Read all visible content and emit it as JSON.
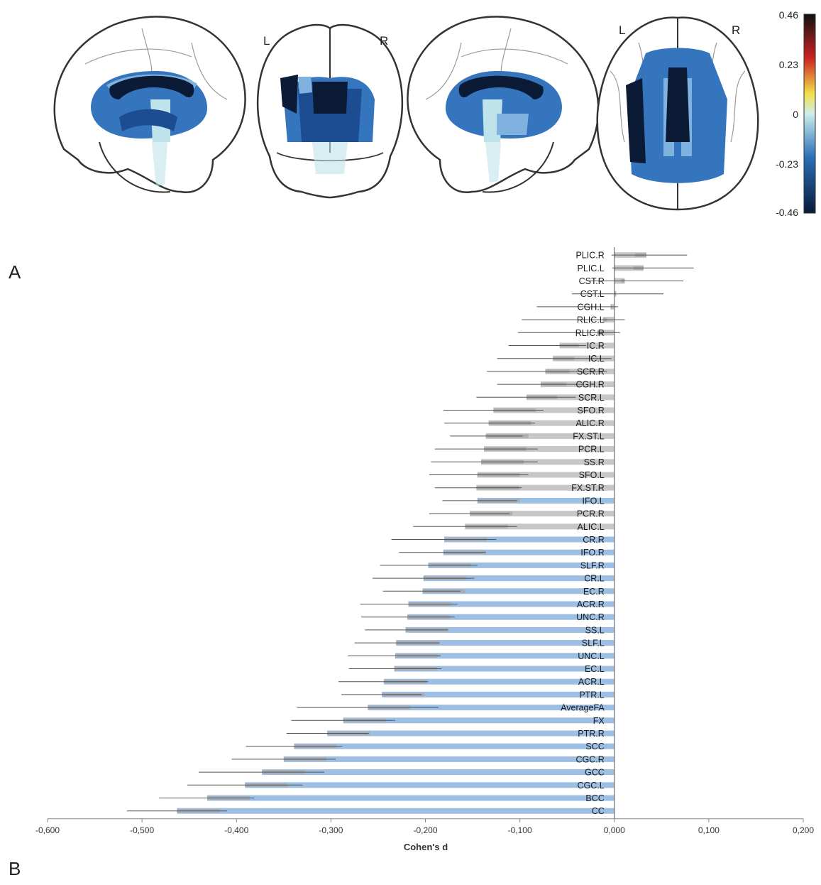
{
  "figure": {
    "panel_a_letter": "A",
    "panel_b_letter": "B",
    "orientation_labels": {
      "left": "L",
      "right": "R"
    },
    "colorbar": {
      "ticks": [
        "0.46",
        "0.23",
        "0",
        "-0.23",
        "-0.46"
      ],
      "colors": {
        "top": "#111111",
        "red": "#cc2222",
        "yellow": "#f2e04a",
        "zero": "#cdeeea",
        "mid_blue": "#2a6fb8",
        "bottom": "#0a1a3a"
      }
    },
    "region_colors": {
      "darkest": "#0b1b36",
      "dark": "#1c4d92",
      "mid": "#3575bd",
      "light": "#7fb2df",
      "pale": "#bfe3ea"
    }
  },
  "chart_data": {
    "type": "bar",
    "orientation": "horizontal",
    "xlabel": "Cohen's d",
    "xlim": [
      -0.6,
      0.2
    ],
    "xticks": [
      "-0,600",
      "-0,500",
      "-0,400",
      "-0,300",
      "-0,200",
      "-0,100",
      "0,000",
      "0,100",
      "0,200"
    ],
    "grid": false,
    "legend": "none",
    "colors": {
      "significant": "#9dbfe3",
      "nonsignificant": "#c7c7c7",
      "inner_band": "#a8a8a8",
      "error_bar": "#555555"
    },
    "categories": [
      "PLIC.R",
      "PLIC.L",
      "CST.R",
      "CST.L",
      "CGH.L",
      "RLIC.L",
      "RLIC.R",
      "IC.R",
      "IC.L",
      "SCR.R",
      "CGH.R",
      "SCR.L",
      "SFO.R",
      "ALIC.R",
      "FX.ST.L",
      "PCR.L",
      "SS.R",
      "SFO.L",
      "FX.ST.R",
      "IFO.L",
      "PCR.R",
      "ALIC.L",
      "CR.R",
      "IFO.R",
      "SLF.R",
      "CR.L",
      "EC.R",
      "ACR.R",
      "UNC.R",
      "SS.L",
      "SLF.L",
      "UNC.L",
      "EC.L",
      "ACR.L",
      "PTR.L",
      "AverageFA",
      "FX",
      "PTR.R",
      "SCC",
      "CGC.R",
      "GCC",
      "CGC.L",
      "BCC",
      "CC"
    ],
    "values": [
      0.034,
      0.031,
      0.011,
      0.002,
      -0.004,
      -0.012,
      -0.018,
      -0.058,
      -0.065,
      -0.073,
      -0.078,
      -0.093,
      -0.128,
      -0.133,
      -0.136,
      -0.138,
      -0.141,
      -0.145,
      -0.146,
      -0.145,
      -0.153,
      -0.158,
      -0.18,
      -0.181,
      -0.197,
      -0.202,
      -0.203,
      -0.218,
      -0.219,
      -0.221,
      -0.231,
      -0.232,
      -0.233,
      -0.244,
      -0.246,
      -0.261,
      -0.287,
      -0.304,
      -0.339,
      -0.35,
      -0.373,
      -0.391,
      -0.431,
      -0.463
    ],
    "error_low": [
      -0.003,
      -0.002,
      -0.028,
      -0.045,
      -0.082,
      -0.098,
      -0.102,
      -0.112,
      -0.124,
      -0.135,
      -0.124,
      -0.146,
      -0.181,
      -0.18,
      -0.174,
      -0.19,
      -0.194,
      -0.196,
      -0.19,
      -0.182,
      -0.196,
      -0.213,
      -0.236,
      -0.228,
      -0.248,
      -0.256,
      -0.245,
      -0.269,
      -0.268,
      -0.264,
      -0.275,
      -0.282,
      -0.281,
      -0.292,
      -0.289,
      -0.336,
      -0.342,
      -0.347,
      -0.39,
      -0.405,
      -0.44,
      -0.452,
      -0.482,
      -0.516
    ],
    "error_high": [
      0.077,
      0.084,
      0.073,
      0.052,
      0.004,
      0.011,
      0.006,
      -0.03,
      -0.003,
      -0.008,
      -0.032,
      -0.041,
      -0.075,
      -0.084,
      -0.097,
      -0.081,
      -0.081,
      -0.091,
      -0.098,
      -0.103,
      -0.111,
      -0.103,
      -0.125,
      -0.136,
      -0.145,
      -0.148,
      -0.163,
      -0.166,
      -0.169,
      -0.176,
      -0.185,
      -0.184,
      -0.183,
      -0.197,
      -0.204,
      -0.186,
      -0.232,
      -0.26,
      -0.288,
      -0.295,
      -0.307,
      -0.33,
      -0.381,
      -0.41
    ],
    "significant": [
      false,
      false,
      false,
      false,
      false,
      false,
      false,
      false,
      false,
      false,
      false,
      false,
      false,
      false,
      false,
      false,
      false,
      false,
      false,
      true,
      false,
      false,
      true,
      true,
      true,
      true,
      true,
      true,
      true,
      true,
      true,
      true,
      true,
      true,
      true,
      true,
      true,
      true,
      true,
      true,
      true,
      true,
      true,
      true
    ]
  }
}
